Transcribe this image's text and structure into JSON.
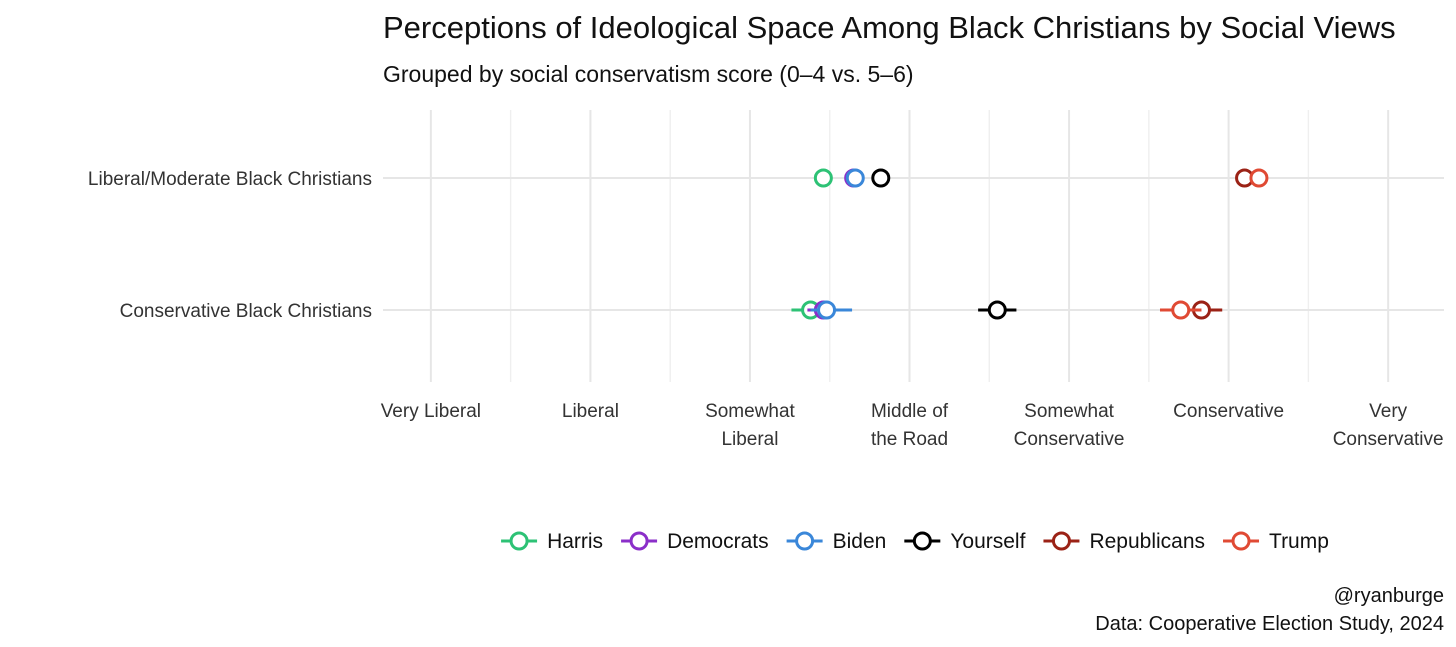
{
  "chart_data": {
    "type": "scatter",
    "title": "Perceptions of Ideological Space Among Black Christians by Social Views",
    "subtitle": "Grouped by social conservatism score (0–4 vs. 5–6)",
    "xlabel": "",
    "ylabel": "",
    "x_ticks": [
      {
        "value": 1,
        "label": [
          "Very Liberal"
        ]
      },
      {
        "value": 2,
        "label": [
          "Liberal"
        ]
      },
      {
        "value": 3,
        "label": [
          "Somewhat",
          "Liberal"
        ]
      },
      {
        "value": 4,
        "label": [
          "Middle of",
          "the Road"
        ]
      },
      {
        "value": 5,
        "label": [
          "Somewhat",
          "Conservative"
        ]
      },
      {
        "value": 6,
        "label": [
          "Conservative"
        ]
      },
      {
        "value": 7,
        "label": [
          "Very",
          "Conservative"
        ]
      }
    ],
    "xlim": [
      0.7,
      7.35
    ],
    "categories": [
      "Liberal/Moderate Black Christians",
      "Conservative Black Christians"
    ],
    "series": [
      {
        "name": "Harris",
        "color": "#2DC275",
        "points": [
          {
            "category": "Liberal/Moderate Black Christians",
            "x": 3.46,
            "ci": [
              3.44,
              3.48
            ]
          },
          {
            "category": "Conservative Black Christians",
            "x": 3.38,
            "ci": [
              3.26,
              3.5
            ]
          }
        ]
      },
      {
        "name": "Democrats",
        "color": "#8B2FC9",
        "points": [
          {
            "category": "Liberal/Moderate Black Christians",
            "x": 3.65,
            "ci": [
              3.63,
              3.67
            ]
          },
          {
            "category": "Conservative Black Christians",
            "x": 3.46,
            "ci": [
              3.36,
              3.58
            ]
          }
        ]
      },
      {
        "name": "Biden",
        "color": "#3A87D9",
        "points": [
          {
            "category": "Liberal/Moderate Black Christians",
            "x": 3.66,
            "ci": [
              3.64,
              3.68
            ]
          },
          {
            "category": "Conservative Black Christians",
            "x": 3.48,
            "ci": [
              3.38,
              3.64
            ]
          }
        ]
      },
      {
        "name": "Yourself",
        "color": "#000000",
        "points": [
          {
            "category": "Liberal/Moderate Black Christians",
            "x": 3.82,
            "ci": [
              3.8,
              3.84
            ]
          },
          {
            "category": "Conservative Black Christians",
            "x": 4.55,
            "ci": [
              4.43,
              4.67
            ]
          }
        ]
      },
      {
        "name": "Republicans",
        "color": "#9B2216",
        "points": [
          {
            "category": "Liberal/Moderate Black Christians",
            "x": 6.1,
            "ci": [
              6.08,
              6.12
            ]
          },
          {
            "category": "Conservative Black Christians",
            "x": 5.83,
            "ci": [
              5.7,
              5.96
            ]
          }
        ]
      },
      {
        "name": "Trump",
        "color": "#E04A34",
        "points": [
          {
            "category": "Liberal/Moderate Black Christians",
            "x": 6.19,
            "ci": [
              6.17,
              6.21
            ]
          },
          {
            "category": "Conservative Black Christians",
            "x": 5.7,
            "ci": [
              5.57,
              5.83
            ]
          }
        ]
      }
    ],
    "grid": true,
    "legend_position": "bottom"
  },
  "caption": {
    "handle": "@ryanburge",
    "source": "Data: Cooperative Election Study, 2024"
  }
}
